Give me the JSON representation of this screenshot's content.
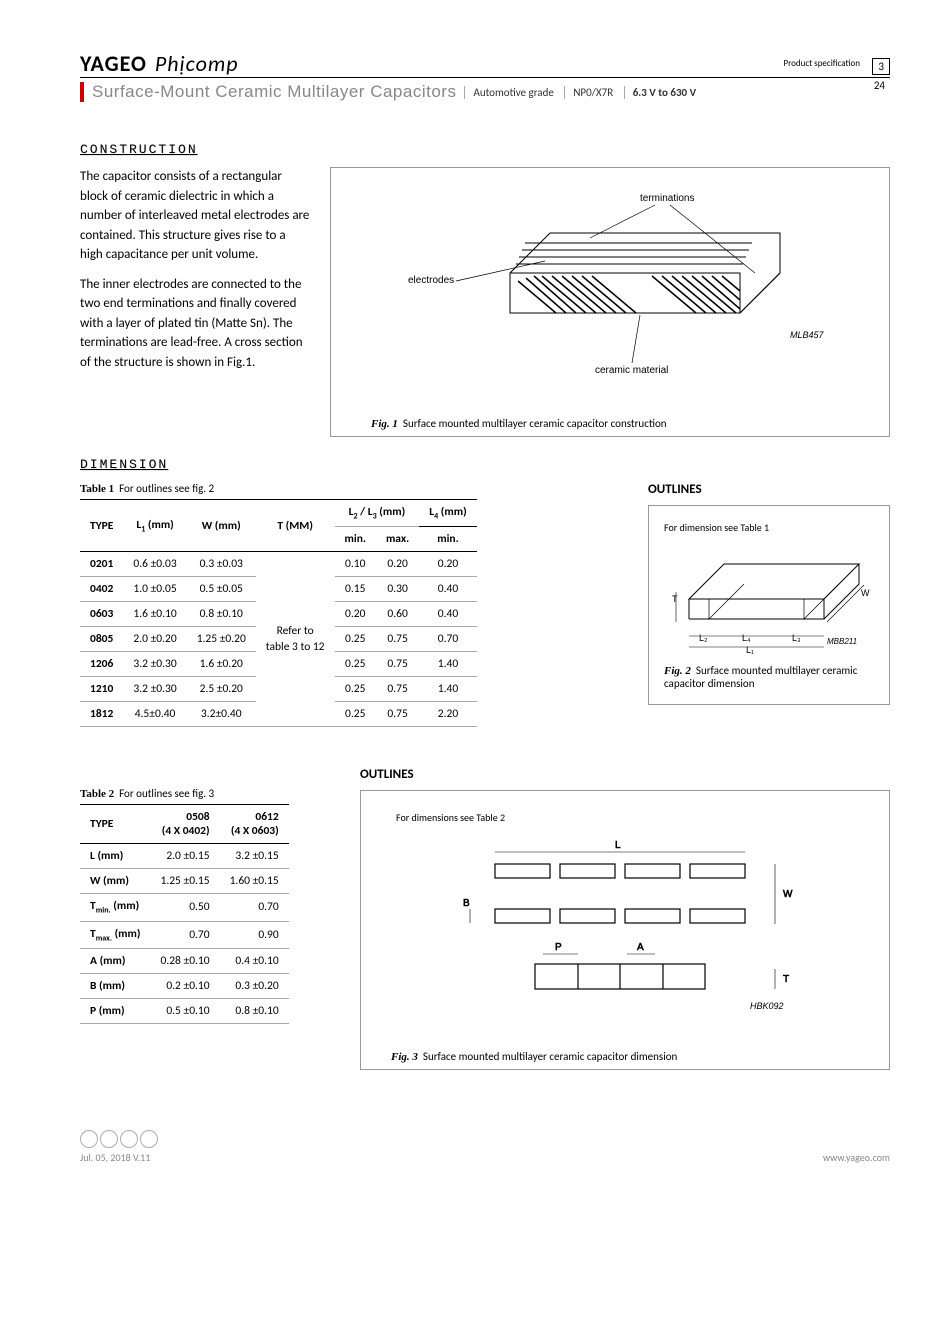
{
  "header": {
    "brand1": "YAGEO",
    "brand2": "Phịcomp",
    "subtitle": "Surface-Mount Ceramic Multilayer Capacitors",
    "meta1": "Automotive grade",
    "meta2": "NP0/X7R",
    "meta3": "6.3 V to 630 V",
    "prodspec": "Product specification",
    "page_cur": "3",
    "page_tot": "24"
  },
  "section": {
    "construction": "CONSTRUCTION",
    "dimension": "DIMENSION",
    "outlines": "OUTLINES"
  },
  "construction_p1": "The capacitor consists of a rectangular block of ceramic dielectric in which a number of interleaved metal electrodes are contained. This structure gives rise to a high capacitance per unit volume.",
  "construction_p2": "The inner electrodes are connected to the two end terminations and finally covered with a layer of plated tin (Matte Sn). The terminations are lead-free. A cross section of the structure is shown in Fig.1.",
  "fig1": {
    "label_term": "terminations",
    "label_elec": "electrodes",
    "label_cer": "ceramic material",
    "code": "MLB457",
    "caption_b": "Fig. 1",
    "caption": "Surface mounted multilayer ceramic capacitor construction"
  },
  "table1": {
    "caption_b": "Table 1",
    "caption": "For outlines see fig. 2",
    "h_type": "TYPE",
    "h_l1": "L₁ (mm)",
    "h_w": "W (mm)",
    "h_t": "T (MM)",
    "h_l23": "L₂ / L₃ (mm)",
    "h_l4": "L₄ (mm)",
    "h_min": "min.",
    "h_max": "max.",
    "t_note": "Refer to table 3 to 12",
    "rows": [
      {
        "type": "0201",
        "l1": "0.6 ±0.03",
        "w": "0.3 ±0.03",
        "min": "0.10",
        "max": "0.20",
        "l4": "0.20"
      },
      {
        "type": "0402",
        "l1": "1.0 ±0.05",
        "w": "0.5 ±0.05",
        "min": "0.15",
        "max": "0.30",
        "l4": "0.40"
      },
      {
        "type": "0603",
        "l1": "1.6 ±0.10",
        "w": "0.8 ±0.10",
        "min": "0.20",
        "max": "0.60",
        "l4": "0.40"
      },
      {
        "type": "0805",
        "l1": "2.0 ±0.20",
        "w": "1.25 ±0.20",
        "min": "0.25",
        "max": "0.75",
        "l4": "0.70"
      },
      {
        "type": "1206",
        "l1": "3.2 ±0.30",
        "w": "1.6 ±0.20",
        "min": "0.25",
        "max": "0.75",
        "l4": "1.40"
      },
      {
        "type": "1210",
        "l1": "3.2 ±0.30",
        "w": "2.5 ±0.20",
        "min": "0.25",
        "max": "0.75",
        "l4": "1.40"
      },
      {
        "type": "1812",
        "l1": "4.5±0.40",
        "w": "3.2±0.40",
        "min": "0.25",
        "max": "0.75",
        "l4": "2.20"
      }
    ]
  },
  "fig2": {
    "note": "For dimension see Table 1",
    "caption_b": "Fig. 2",
    "caption": "Surface mounted multilayer ceramic capacitor dimension",
    "code": "MBB211",
    "l1": "L₁",
    "l2": "L₂",
    "l3": "L₃",
    "l4": "L₄",
    "t": "T",
    "w": "W"
  },
  "table2": {
    "caption_b": "Table 2",
    "caption": "For outlines see fig. 3",
    "h_type": "TYPE",
    "c1": "0508",
    "c1s": "(4 X 0402)",
    "c2": "0612",
    "c2s": "(4 X 0603)",
    "rows": [
      {
        "lbl": "L (mm)",
        "a": "2.0 ±0.15",
        "b": "3.2 ±0.15"
      },
      {
        "lbl": "W (mm)",
        "a": "1.25 ±0.15",
        "b": "1.60 ±0.15"
      },
      {
        "lbl": "Tmin. (mm)",
        "a": "0.50",
        "b": "0.70"
      },
      {
        "lbl": "Tmax. (mm)",
        "a": "0.70",
        "b": "0.90"
      },
      {
        "lbl": "A (mm)",
        "a": "0.28 ±0.10",
        "b": "0.4 ±0.10"
      },
      {
        "lbl": "B (mm)",
        "a": "0.2 ±0.10",
        "b": "0.3 ±0.20"
      },
      {
        "lbl": "P (mm)",
        "a": "0.5 ±0.10",
        "b": "0.8 ±0.10"
      }
    ]
  },
  "fig3": {
    "note": "For dimensions see Table 2",
    "caption_b": "Fig. 3",
    "caption": "Surface mounted multilayer ceramic capacitor dimension",
    "code": "HBK092",
    "l": "L",
    "w": "W",
    "b": "B",
    "p": "P",
    "a": "A",
    "t": "T"
  },
  "footer": {
    "date": "Jul. 05, 2018 V.11",
    "url": "www.yageo.com"
  }
}
